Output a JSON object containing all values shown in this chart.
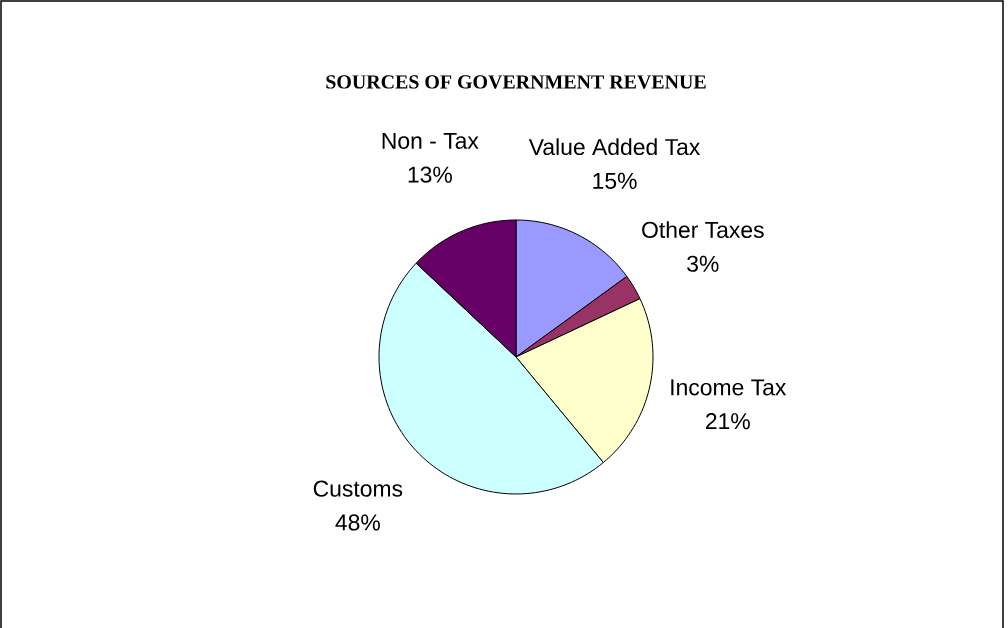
{
  "chart_data": {
    "type": "pie",
    "title": "SOURCES OF GOVERNMENT REVENUE",
    "categories": [
      "Value Added Tax",
      "Other Taxes",
      "Income Tax",
      "Customs",
      "Non - Tax"
    ],
    "values": [
      15,
      3,
      21,
      48,
      13
    ],
    "value_labels": [
      "15%",
      "3%",
      "21%",
      "48%",
      "13%"
    ],
    "colors": [
      "#9999ff",
      "#993366",
      "#ffffcc",
      "#ccffff",
      "#660066"
    ]
  }
}
